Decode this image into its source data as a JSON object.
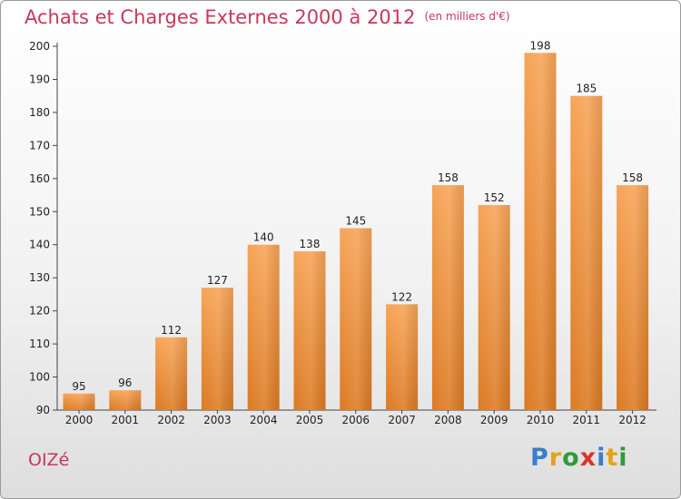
{
  "title": "Achats et Charges Externes 2000 à 2012",
  "unit_note": "(en milliers d'€)",
  "place": "OIZé",
  "logo": {
    "letters": [
      "P",
      "r",
      "o",
      "x",
      "i",
      "t",
      "i"
    ],
    "colors": [
      "#3a7ec8",
      "#e6a21c",
      "#2f9a3a",
      "#d9342b",
      "#3a7ec8",
      "#e6a21c",
      "#2f9a3a"
    ]
  },
  "colors": {
    "bar": "#f0933c",
    "bar_dark": "#d9741f",
    "accent": "#c8385a"
  },
  "chart_data": {
    "type": "bar",
    "title": "Achats et Charges Externes 2000 à 2012",
    "categories": [
      "2000",
      "2001",
      "2002",
      "2003",
      "2004",
      "2005",
      "2006",
      "2007",
      "2008",
      "2009",
      "2010",
      "2011",
      "2012"
    ],
    "values": [
      95,
      96,
      112,
      127,
      140,
      138,
      145,
      122,
      158,
      152,
      198,
      185,
      158
    ],
    "ylim": [
      90,
      200
    ],
    "yticks": [
      90,
      100,
      110,
      120,
      130,
      140,
      150,
      160,
      170,
      180,
      190,
      200
    ],
    "grid": false,
    "legend": "none"
  }
}
